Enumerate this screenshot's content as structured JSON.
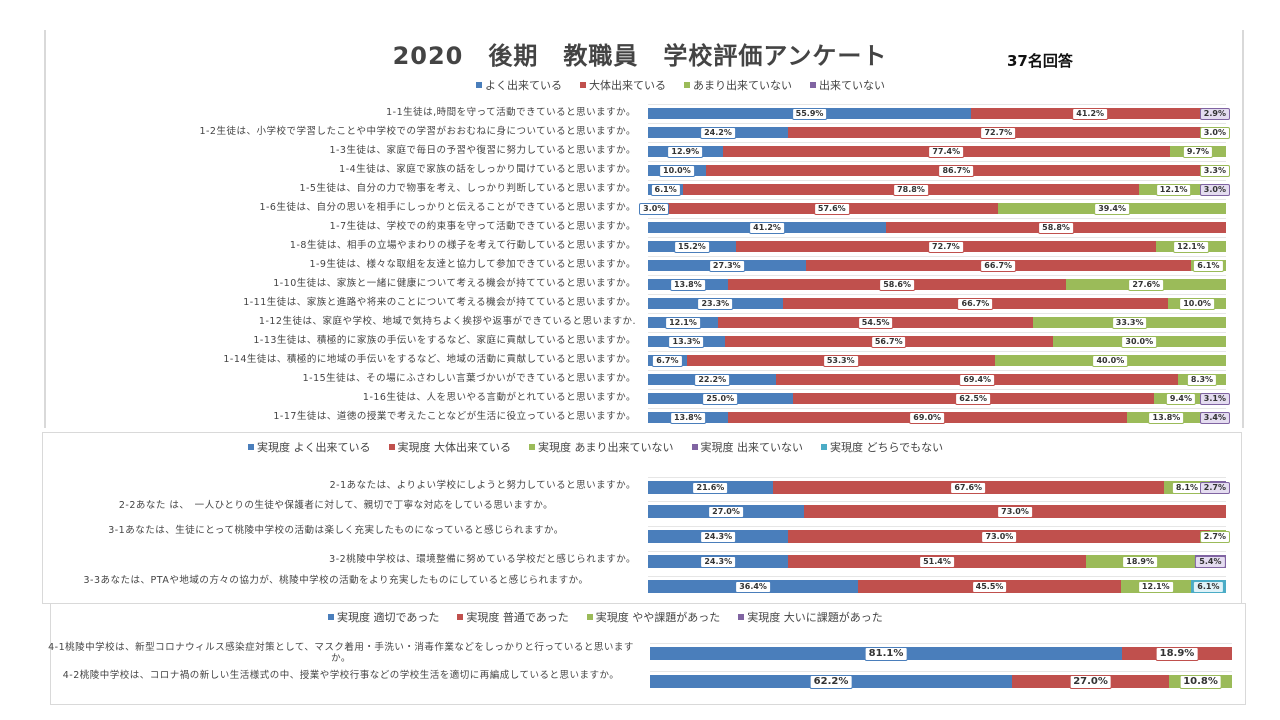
{
  "title": "2020　後期　教職員　学校評価アンケート",
  "respondents": "37名回答",
  "colors": {
    "blue": "#4a7ebb",
    "red": "#c0504d",
    "green": "#9bbb59",
    "purple": "#8064a2",
    "cyan": "#4bacc6",
    "purple_label_bg": "#e4dcf0",
    "cyan_label_bg": "#dff2f8"
  },
  "chart_data": [
    {
      "type": "bar",
      "stacked": "100%",
      "orientation": "horizontal",
      "legend_position": "top",
      "legend": [
        "よく出来ている",
        "大体出来ている",
        "あまり出来ていない",
        "出来ていない"
      ],
      "categories": [
        "1-1生徒は,時間を守って活動できていると思いますか。",
        "1-2生徒は、小学校で学習したことや中学校での学習がおおむねに身についていると思いますか。",
        "1-3生徒は、家庭で毎日の予習や復習に努力していると思いますか。",
        "1-4生徒は、家庭で家族の話をしっかり聞けていると思いますか。",
        "1-5生徒は、自分の力で物事を考え、しっかり判断していると思いますか。",
        "1-6生徒は、自分の思いを相手にしっかりと伝えることができていると思いますか。",
        "1-7生徒は、学校での約束事を守って活動できていると思いますか。",
        "1-8生徒は、相手の立場やまわりの様子を考えて行動していると思いますか。",
        "1-9生徒は、様々な取組を友達と協力して参加できていると思いますか。",
        "1-10生徒は、家族と一緒に健康について考える機会が持てていると思いますか。",
        "1-11生徒は、家族と進路や将来のことについて考える機会が持てていると思いますか。",
        "1-12生徒は、家庭や学校、地域で気持ちよく挨拶や返事ができていると思いますか.",
        "1-13生徒は、積極的に家族の手伝いをするなど、家庭に貢献していると思いますか。",
        "1-14生徒は、積極的に地域の手伝いをするなど、地域の活動に貢献していると思いますか。",
        "1-15生徒は、その場にふさわしい言葉づかいができていると思いますか。",
        "1-16生徒は、人を思いやる言動がとれていると思いますか。",
        "1-17生徒は、道徳の授業で考えたことなどが生活に役立っていると思いますか。"
      ],
      "series": [
        {
          "name": "よく出来ている",
          "color": "blue",
          "values": [
            55.9,
            24.2,
            12.9,
            10.0,
            6.1,
            3.0,
            41.2,
            15.2,
            27.3,
            13.8,
            23.3,
            12.1,
            13.3,
            6.7,
            22.2,
            25.0,
            13.8
          ]
        },
        {
          "name": "大体出来ている",
          "color": "red",
          "values": [
            41.2,
            72.7,
            77.4,
            86.7,
            78.8,
            57.6,
            58.8,
            72.7,
            66.7,
            58.6,
            66.7,
            54.5,
            56.7,
            53.3,
            69.4,
            62.5,
            69.0
          ]
        },
        {
          "name": "あまり出来ていない",
          "color": "green",
          "values": [
            null,
            3.0,
            9.7,
            3.3,
            12.1,
            39.4,
            null,
            12.1,
            6.1,
            27.6,
            10.0,
            33.3,
            30.0,
            40.0,
            8.3,
            9.4,
            13.8
          ]
        },
        {
          "name": "出来ていない",
          "color": "purple",
          "values": [
            2.9,
            null,
            null,
            null,
            3.0,
            null,
            null,
            null,
            null,
            null,
            null,
            null,
            null,
            null,
            null,
            3.1,
            3.4
          ]
        }
      ],
      "xlim": [
        0,
        100
      ]
    },
    {
      "type": "bar",
      "stacked": "100%",
      "orientation": "horizontal",
      "legend_position": "top",
      "legend": [
        "実現度 よく出来ている",
        "実現度 大体出来ている",
        "実現度 あまり出来ていない",
        "実現度 出来ていない",
        "実現度 どちらでもない"
      ],
      "categories": [
        "2-1あなたは、よりよい学校にしようと努力していると思いますか。",
        "2-2あなた は、　一人ひとりの生徒や保護者に対して、親切で丁寧な対応をしている思いますか。",
        "3-1あなたは、生徒にとって桃陵中学校の活動は楽しく充実したものになっていると感じられますか。",
        "3-2桃陵中学校は、環境整備に努めている学校だと感じられますか。",
        "3-3あなたは、PTAや地域の方々の協力が、桃陵中学校の活動をより充実したものにしていると感じられますか。"
      ],
      "series": [
        {
          "name": "実現度 よく出来ている",
          "color": "blue",
          "values": [
            21.6,
            27.0,
            24.3,
            24.3,
            36.4
          ]
        },
        {
          "name": "実現度 大体出来ている",
          "color": "red",
          "values": [
            67.6,
            73.0,
            73.0,
            51.4,
            45.5
          ]
        },
        {
          "name": "実現度 あまり出来ていない",
          "color": "green",
          "values": [
            8.1,
            null,
            2.7,
            18.9,
            12.1
          ]
        },
        {
          "name": "実現度 出来ていない",
          "color": "purple",
          "values": [
            2.7,
            null,
            null,
            5.4,
            null
          ]
        },
        {
          "name": "実現度 どちらでもない",
          "color": "cyan",
          "values": [
            null,
            null,
            null,
            null,
            6.1
          ]
        }
      ],
      "xlim": [
        0,
        100
      ]
    },
    {
      "type": "bar",
      "stacked": "100%",
      "orientation": "horizontal",
      "legend_position": "top",
      "legend": [
        "実現度 適切であった",
        "実現度 普通であった",
        "実現度 やや課題があった",
        "実現度 大いに課題があった"
      ],
      "categories": [
        "4-1桃陵中学校は、新型コロナウィルス感染症対策として、マスク着用・手洗い・消毒作業などをしっかりと行っていると思いますか。",
        "4-2桃陵中学校は、コロナ禍の新しい生活様式の中、授業や学校行事などの学校生活を適切に再編成していると思いますか。"
      ],
      "series": [
        {
          "name": "実現度 適切であった",
          "color": "blue",
          "values": [
            81.1,
            62.2
          ]
        },
        {
          "name": "実現度 普通であった",
          "color": "red",
          "values": [
            18.9,
            27.0
          ]
        },
        {
          "name": "実現度 やや課題があった",
          "color": "green",
          "values": [
            null,
            10.8
          ]
        },
        {
          "name": "実現度 大いに課題があった",
          "color": "purple",
          "values": [
            null,
            null
          ]
        }
      ],
      "xlim": [
        0,
        100
      ]
    }
  ]
}
